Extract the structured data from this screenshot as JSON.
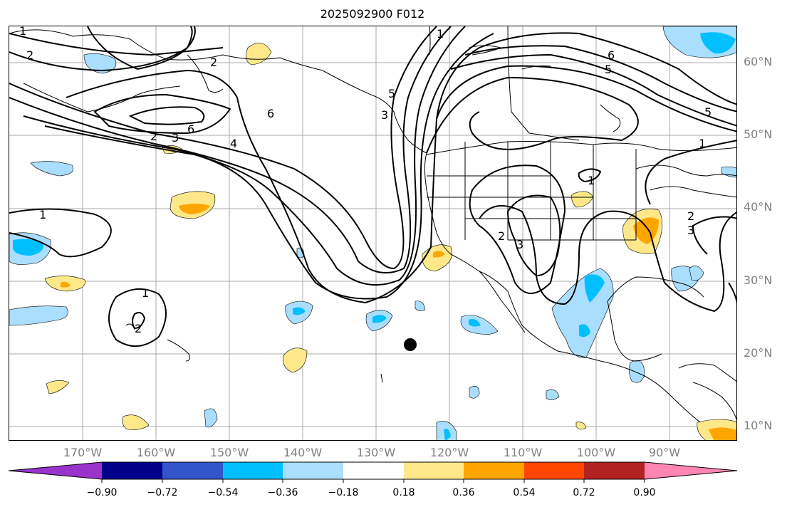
{
  "title": "2025092900 F012",
  "map": {
    "lat_labels": [
      "60°N",
      "50°N",
      "40°N",
      "30°N",
      "20°N",
      "10°N"
    ],
    "lon_labels": [
      "170°W",
      "160°W",
      "150°W",
      "140°W",
      "130°W",
      "120°W",
      "110°W",
      "100°W",
      "90°W"
    ],
    "contour_labels": [
      "1",
      "2",
      "2",
      "3",
      "4",
      "6",
      "6",
      "5",
      "1",
      "1",
      "2",
      "3",
      "1",
      "2",
      "1",
      "2",
      "3",
      "6",
      "5",
      "5",
      "1",
      "2",
      "3"
    ]
  },
  "colorbar": {
    "tick_labels": [
      "−0.90",
      "−0.72",
      "−0.54",
      "−0.36",
      "−0.18",
      "0.18",
      "0.36",
      "0.54",
      "0.72",
      "0.90"
    ],
    "colors": [
      "#9933cc",
      "#00008b",
      "#3355cc",
      "#00bfff",
      "#aadeff",
      "#ffffff",
      "#ffe88a",
      "#ffa500",
      "#ff4500",
      "#b22222",
      "#ff85b3"
    ]
  }
}
